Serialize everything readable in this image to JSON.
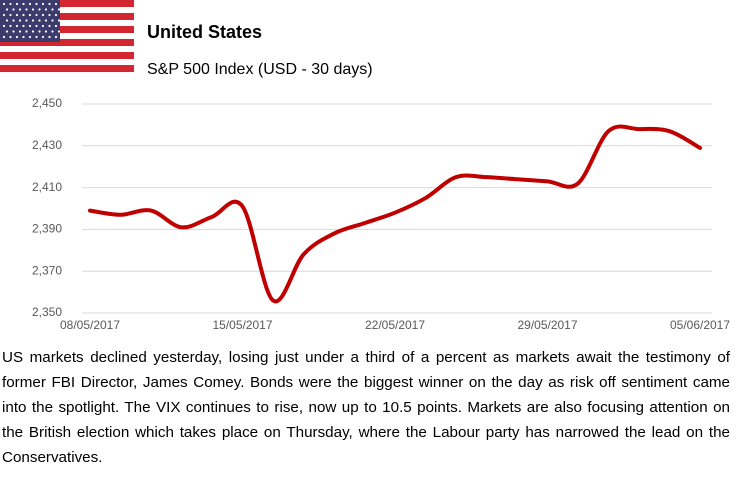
{
  "header": {
    "title": "United States",
    "subtitle": "S&P 500 Index (USD - 30 days)"
  },
  "chart_data": {
    "type": "line",
    "categories": [
      "08/05/2017",
      null,
      null,
      null,
      null,
      "15/05/2017",
      null,
      null,
      null,
      null,
      "22/05/2017",
      null,
      null,
      null,
      null,
      "29/05/2017",
      null,
      null,
      null,
      null,
      "05/06/2017"
    ],
    "series": [
      {
        "name": "S&P 500",
        "color": "#c00000",
        "values": [
          2399,
          2397,
          2399,
          2391,
          2396,
          2401,
          2356,
          2378,
          2388,
          2393,
          2398,
          2405,
          2415,
          2415,
          2414,
          2413,
          2412,
          2437,
          2438,
          2437,
          2429
        ]
      }
    ],
    "ylim": [
      2350,
      2450
    ],
    "yticks": [
      {
        "value": 2350,
        "label": "2,350"
      },
      {
        "value": 2370,
        "label": "2,370"
      },
      {
        "value": 2390,
        "label": "2,390"
      },
      {
        "value": 2410,
        "label": "2,410"
      },
      {
        "value": 2430,
        "label": "2,430"
      },
      {
        "value": 2450,
        "label": "2,450"
      }
    ],
    "grid": true
  },
  "body": "US markets declined yesterday, losing just under a third of a percent as markets await the testimony of former FBI Director, James Comey. Bonds were the biggest winner on the day as risk off sentiment came into the spotlight. The VIX continues to rise, now up to 10.5 points. Markets are also focusing attention on the British election which takes place on Thursday, where the Labour party has narrowed the lead on the Conservatives."
}
